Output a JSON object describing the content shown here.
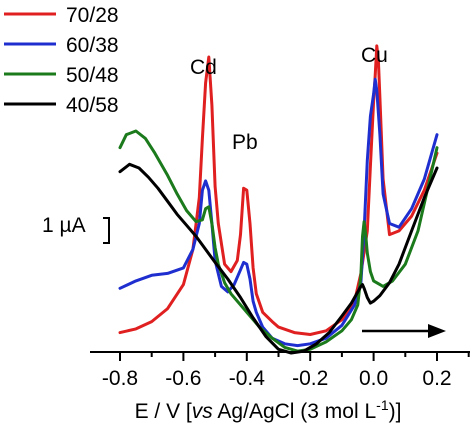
{
  "chart_data": {
    "type": "line",
    "xlabel": {
      "prefix": "E / V [",
      "italic": "vs",
      "middle": " Ag/AgCl (3 mol L",
      "sup": "-1",
      "suffix": ")]"
    },
    "ylabel": "",
    "xlim": [
      -0.82,
      0.24
    ],
    "ylim_uA": [
      -3.2,
      7.6
    ],
    "x_ticks": [
      -0.8,
      -0.6,
      -0.4,
      -0.2,
      0.0,
      0.2
    ],
    "x_tick_labels": [
      "-0.8",
      "-0.6",
      "-0.4",
      "-0.2",
      "0.0",
      "0.2"
    ],
    "grid": false,
    "legend_position": "top-left",
    "scale_bar": {
      "label": "1 µA",
      "value_uA": 1
    },
    "scan_direction": "positive",
    "peak_labels": [
      {
        "text": "Cd",
        "x": -0.52
      },
      {
        "text": "Pb",
        "x": -0.41
      },
      {
        "text": "Cu",
        "x": 0.0
      }
    ],
    "series": [
      {
        "name": "70/28",
        "color": "#e02020",
        "x": [
          -0.8,
          -0.75,
          -0.7,
          -0.65,
          -0.6,
          -0.57,
          -0.55,
          -0.54,
          -0.53,
          -0.52,
          -0.51,
          -0.5,
          -0.49,
          -0.47,
          -0.45,
          -0.43,
          -0.42,
          -0.41,
          -0.4,
          -0.39,
          -0.38,
          -0.37,
          -0.35,
          -0.32,
          -0.3,
          -0.25,
          -0.2,
          -0.15,
          -0.1,
          -0.06,
          -0.04,
          -0.02,
          -0.01,
          0.0,
          0.005,
          0.01,
          0.015,
          0.02,
          0.03,
          0.05,
          0.08,
          0.12,
          0.16,
          0.2
        ],
        "y": [
          -2.45,
          -2.35,
          -2.15,
          -1.8,
          -1.15,
          -0.2,
          1.2,
          2.8,
          4.3,
          5.0,
          3.7,
          1.5,
          0.5,
          -0.6,
          -0.8,
          -0.5,
          0.2,
          1.45,
          1.4,
          0.5,
          -0.7,
          -1.4,
          -1.9,
          -2.15,
          -2.3,
          -2.45,
          -2.5,
          -2.4,
          -2.1,
          -1.6,
          -0.85,
          0.3,
          2.05,
          3.8,
          4.5,
          5.3,
          4.9,
          3.9,
          1.7,
          0.2,
          0.3,
          0.7,
          1.4,
          2.4
        ]
      },
      {
        "name": "60/38",
        "color": "#1f2fcf",
        "x": [
          -0.8,
          -0.75,
          -0.7,
          -0.65,
          -0.6,
          -0.57,
          -0.55,
          -0.54,
          -0.53,
          -0.52,
          -0.51,
          -0.5,
          -0.48,
          -0.46,
          -0.44,
          -0.42,
          -0.41,
          -0.4,
          -0.39,
          -0.38,
          -0.37,
          -0.35,
          -0.32,
          -0.28,
          -0.24,
          -0.2,
          -0.15,
          -0.1,
          -0.06,
          -0.04,
          -0.03,
          -0.02,
          -0.01,
          0.0,
          0.005,
          0.01,
          0.02,
          0.03,
          0.05,
          0.08,
          0.12,
          0.16,
          0.2
        ],
        "y": [
          -1.25,
          -1.05,
          -0.9,
          -0.85,
          -0.7,
          -0.2,
          0.5,
          1.4,
          1.65,
          1.4,
          0.5,
          -0.5,
          -1.2,
          -1.35,
          -1.15,
          -0.75,
          -0.55,
          -0.6,
          -1.0,
          -1.6,
          -1.9,
          -2.3,
          -2.6,
          -2.75,
          -2.8,
          -2.75,
          -2.6,
          -2.25,
          -1.7,
          -1.1,
          0.3,
          2.2,
          3.4,
          4.0,
          4.4,
          4.1,
          2.9,
          1.3,
          0.5,
          0.4,
          0.9,
          1.7,
          2.9
        ]
      },
      {
        "name": "50/48",
        "color": "#1b7a1b",
        "x": [
          -0.8,
          -0.78,
          -0.75,
          -0.72,
          -0.69,
          -0.65,
          -0.62,
          -0.59,
          -0.56,
          -0.54,
          -0.53,
          -0.52,
          -0.51,
          -0.5,
          -0.49,
          -0.47,
          -0.45,
          -0.42,
          -0.4,
          -0.36,
          -0.32,
          -0.28,
          -0.24,
          -0.2,
          -0.15,
          -0.1,
          -0.07,
          -0.05,
          -0.04,
          -0.035,
          -0.03,
          -0.025,
          -0.02,
          -0.01,
          0.0,
          0.03,
          0.06,
          0.1,
          0.14,
          0.18,
          0.2
        ],
        "y": [
          2.55,
          2.9,
          3.0,
          2.8,
          2.4,
          1.8,
          1.3,
          0.85,
          0.55,
          0.6,
          0.9,
          0.95,
          0.5,
          -0.15,
          -0.6,
          -1.1,
          -1.4,
          -1.7,
          -1.9,
          -2.3,
          -2.6,
          -2.85,
          -2.95,
          -2.9,
          -2.7,
          -2.4,
          -2.1,
          -1.7,
          -0.9,
          0.15,
          0.55,
          0.2,
          -0.3,
          -0.8,
          -1.05,
          -1.2,
          -1.05,
          -0.6,
          0.3,
          1.8,
          2.55
        ]
      },
      {
        "name": "40/58",
        "color": "#000000",
        "x": [
          -0.8,
          -0.77,
          -0.74,
          -0.71,
          -0.68,
          -0.65,
          -0.62,
          -0.59,
          -0.56,
          -0.53,
          -0.5,
          -0.46,
          -0.42,
          -0.38,
          -0.34,
          -0.3,
          -0.26,
          -0.22,
          -0.18,
          -0.14,
          -0.1,
          -0.07,
          -0.05,
          -0.04,
          -0.035,
          -0.03,
          -0.02,
          -0.01,
          0.0,
          0.02,
          0.05,
          0.08,
          0.12,
          0.16,
          0.2
        ],
        "y": [
          1.9,
          2.1,
          2.0,
          1.75,
          1.45,
          1.1,
          0.75,
          0.45,
          0.15,
          -0.2,
          -0.55,
          -1.0,
          -1.5,
          -2.05,
          -2.55,
          -2.9,
          -3.0,
          -2.95,
          -2.75,
          -2.45,
          -2.0,
          -1.65,
          -1.35,
          -1.2,
          -1.15,
          -1.25,
          -1.5,
          -1.65,
          -1.6,
          -1.45,
          -1.1,
          -0.6,
          0.3,
          1.2,
          2.0
        ]
      }
    ]
  }
}
